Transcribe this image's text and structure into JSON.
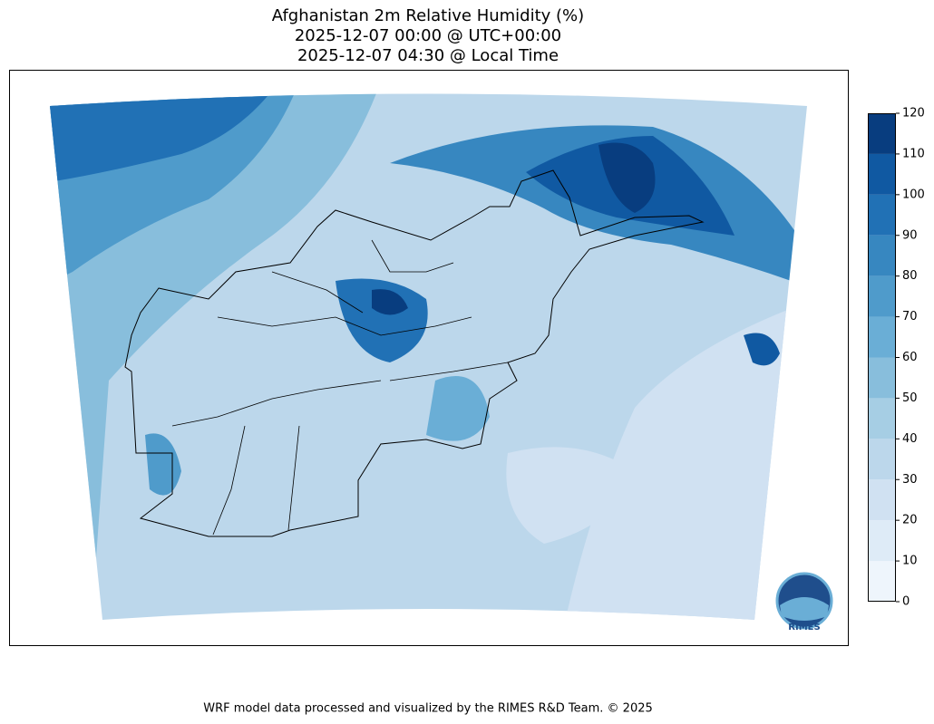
{
  "title": [
    "Afghanistan 2m Relative Humidity (%)",
    "2025-12-07 00:00 @ UTC+00:00",
    "2025-12-07 04:30 @ Local Time"
  ],
  "colorbar": {
    "lim": [
      0,
      120
    ],
    "ticks": [
      0,
      10,
      20,
      30,
      40,
      50,
      60,
      70,
      80,
      90,
      100,
      110,
      120
    ],
    "colors": [
      "#eef5fc",
      "#deebf7",
      "#d0e1f2",
      "#bcd7eb",
      "#a6cee4",
      "#88bedc",
      "#6aaed6",
      "#4f9bcb",
      "#3787c0",
      "#2171b5",
      "#1059a2",
      "#083d7f"
    ]
  },
  "logo": "RIMES",
  "footer": "WRF model data processed and visualized by the RIMES R&D Team. © 2025"
}
